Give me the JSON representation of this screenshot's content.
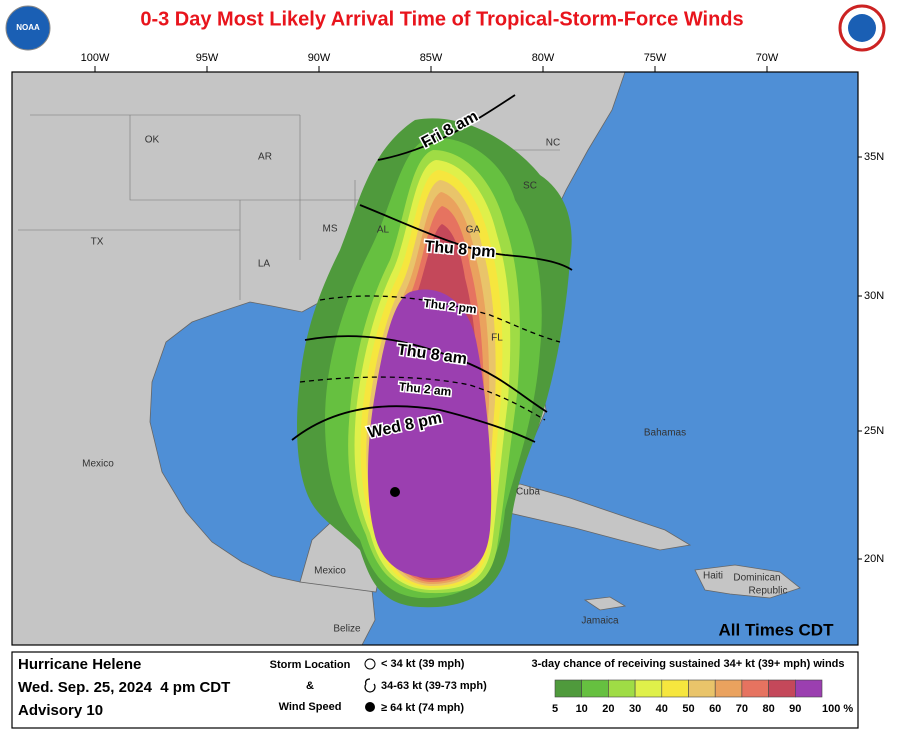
{
  "header": {
    "title": "0-3 Day Most Likely Arrival Time of Tropical-Storm-Force Winds",
    "logo_left": "NOAA"
  },
  "map": {
    "longitude_labels": [
      "100W",
      "95W",
      "90W",
      "85W",
      "80W",
      "75W",
      "70W"
    ],
    "latitude_labels": [
      "35N",
      "30N",
      "25N",
      "20N"
    ],
    "places": [
      "OK",
      "AR",
      "NC",
      "SC",
      "GA",
      "AL",
      "MS",
      "TX",
      "LA",
      "FL",
      "Mexico",
      "Mexico",
      "Bahamas",
      "Cuba",
      "Haiti",
      "Dominican",
      "Republic",
      "Jamaica",
      "Belize"
    ],
    "arrival_labels": [
      "Fri 8 am",
      "Thu 8 pm",
      "Thu 2 pm",
      "Thu 8 am",
      "Thu 2 am",
      "Wed 8 pm"
    ],
    "time_note": "All Times CDT"
  },
  "footer": {
    "storm": "Hurricane Helene",
    "date": "Wed. Sep. 25, 2024  4 pm CDT",
    "advisory": "Advisory 10",
    "legend_title": [
      "Storm Location",
      "&",
      "Wind Speed"
    ],
    "symbols": [
      "< 34 kt (39 mph)",
      "34-63 kt (39-73 mph)",
      "≥ 64 kt (74 mph)"
    ],
    "scale_title": "3-day chance of receiving sustained 34+ kt (39+ mph) winds",
    "scale_labels": [
      "5",
      "10",
      "20",
      "30",
      "40",
      "50",
      "60",
      "70",
      "80",
      "90",
      "100 %"
    ],
    "scale_colors": [
      "#4f9a3c",
      "#66c040",
      "#9fdc45",
      "#dff04a",
      "#f6e63e",
      "#e9c46a",
      "#eaa25e",
      "#e67360",
      "#c4485a",
      "#9b3fb0"
    ]
  }
}
